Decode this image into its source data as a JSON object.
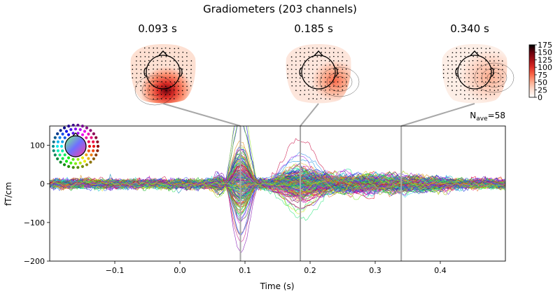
{
  "chart_data": {
    "type": "line",
    "title": "Gradiometers (203 channels)",
    "xlabel": "Time (s)",
    "ylabel": "fT/cm",
    "xlim": [
      -0.2,
      0.5
    ],
    "ylim": [
      -200,
      150
    ],
    "xticks": [
      -0.1,
      0.0,
      0.1,
      0.2,
      0.3,
      0.4
    ],
    "xtick_labels": [
      "−0.1",
      "0.0",
      "0.1",
      "0.2",
      "0.3",
      "0.4"
    ],
    "yticks": [
      -200,
      -100,
      0,
      100
    ],
    "ytick_labels": [
      "−200",
      "−100",
      "0",
      "100"
    ],
    "grid": false,
    "n_ave_label": "N",
    "n_ave_sub": "ave",
    "n_ave_value": "=58",
    "n_channels": 203,
    "peak_times": [
      0.093,
      0.185,
      0.34
    ],
    "topomaps": [
      {
        "time_label": "0.093 s",
        "time": 0.093
      },
      {
        "time_label": "0.185 s",
        "time": 0.185
      },
      {
        "time_label": "0.340 s",
        "time": 0.34
      }
    ],
    "colorbar": {
      "vmin": 0,
      "vmax": 175,
      "ticks": [
        0,
        25,
        50,
        75,
        100,
        125,
        150,
        175
      ],
      "tick_labels": [
        "0",
        "25",
        "50",
        "75",
        "100",
        "125",
        "150",
        "175"
      ],
      "colors": [
        "#ffffff",
        "#fde0d2",
        "#fcae91",
        "#fb6a4a",
        "#de2d26",
        "#a50f15",
        "#67000d",
        "#000000"
      ]
    },
    "sensor_legend": "spatial-color-head-icon"
  }
}
